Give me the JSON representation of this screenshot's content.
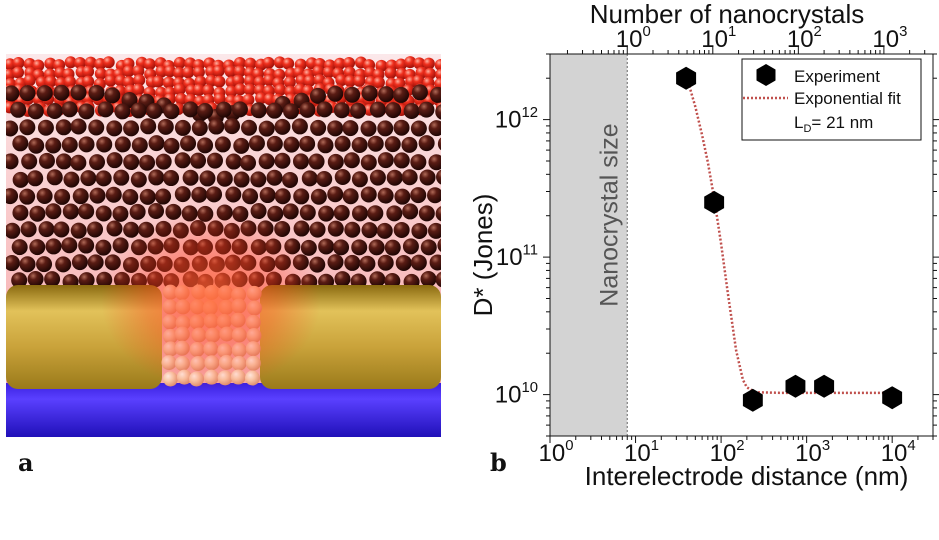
{
  "panel_a": {
    "letter": "a",
    "colors": {
      "nanocrystal": "#4a1510",
      "glow": "#ff3a1a",
      "electrode": "#c9a23a",
      "substrate": "#2a1ad0"
    }
  },
  "panel_b": {
    "letter": "b"
  },
  "chart_data": {
    "type": "scatter",
    "xlabel": "Interelectrode distance (nm)",
    "ylabel": "D* (Jones)",
    "x_top_label": "Number of nanocrystals",
    "x_scale": "log",
    "y_scale": "log",
    "xlim": [
      1,
      30000
    ],
    "ylim": [
      5000000000.0,
      3000000000000.0
    ],
    "x_ticks": [
      {
        "base": "10",
        "exp": "0",
        "value": 1
      },
      {
        "base": "10",
        "exp": "1",
        "value": 10
      },
      {
        "base": "10",
        "exp": "2",
        "value": 100
      },
      {
        "base": "10",
        "exp": "3",
        "value": 1000
      },
      {
        "base": "10",
        "exp": "4",
        "value": 10000
      }
    ],
    "x_top_ticks": [
      {
        "base": "10",
        "exp": "0",
        "value": 1
      },
      {
        "base": "10",
        "exp": "1",
        "value": 10
      },
      {
        "base": "10",
        "exp": "2",
        "value": 100
      },
      {
        "base": "10",
        "exp": "3",
        "value": 1000
      }
    ],
    "x_top_range": [
      0.125,
      3750
    ],
    "y_ticks": [
      {
        "base": "10",
        "exp": "10",
        "value": 10000000000.0
      },
      {
        "base": "10",
        "exp": "11",
        "value": 100000000000.0
      },
      {
        "base": "10",
        "exp": "12",
        "value": 1000000000000.0
      }
    ],
    "shaded_region": {
      "label": "Nanocrystal size",
      "x_range": [
        1,
        8
      ],
      "color": "#d3d3d3"
    },
    "series": [
      {
        "name": "Experiment",
        "marker": "hexagon",
        "color": "#000000",
        "x": [
          39,
          83,
          235,
          740,
          1600,
          10000
        ],
        "y": [
          2000000000000.0,
          250000000000.0,
          9100000000.0,
          11500000000.0,
          11500000000.0,
          9500000000.0
        ]
      },
      {
        "name": "Exponential fit",
        "style": "dotted",
        "color": "#c0504d",
        "x": [
          40,
          50,
          60,
          70,
          83,
          100,
          120,
          150,
          180,
          200,
          250,
          500,
          1000,
          10000
        ],
        "y": [
          2000000000000.0,
          1240000000000.0,
          770000000000.0,
          490000000000.0,
          268000000000.0,
          125000000000.0,
          54500000000.0,
          20900000000.0,
          12800000000.0,
          11300000000.0,
          10400000000.0,
          10300000000.0,
          10300000000.0,
          10300000000.0
        ]
      }
    ],
    "legend": {
      "position": "top-right",
      "annotation_main": "L",
      "annotation_sub": "D",
      "annotation_rest": "= 21 nm"
    },
    "grid": false
  }
}
